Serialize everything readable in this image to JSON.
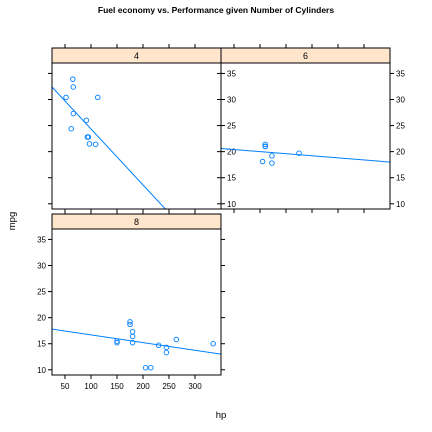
{
  "chart_data": {
    "type": "scatter",
    "title": "Fuel economy vs. Performance given Number of Cylinders",
    "xlabel": "hp",
    "ylabel": "mpg",
    "xlim": [
      25,
      350
    ],
    "ylim": [
      9,
      37
    ],
    "x_ticks": [
      50,
      100,
      150,
      200,
      250,
      300
    ],
    "y_ticks": [
      10,
      15,
      20,
      25,
      30,
      35
    ],
    "point_color": "#0080ff",
    "line_color": "#0080ff",
    "strip_color": "#ffe5cc",
    "panels": [
      {
        "strip": "8",
        "points": [
          [
            175,
            18.7
          ],
          [
            245,
            14.3
          ],
          [
            180,
            16.4
          ],
          [
            180,
            17.3
          ],
          [
            180,
            15.2
          ],
          [
            205,
            10.4
          ],
          [
            215,
            10.4
          ],
          [
            230,
            14.7
          ],
          [
            150,
            15.5
          ],
          [
            150,
            15.2
          ],
          [
            245,
            13.3
          ],
          [
            175,
            19.2
          ],
          [
            264,
            15.8
          ],
          [
            335,
            15.0
          ]
        ],
        "fit_line": [
          [
            25,
            17.8
          ],
          [
            350,
            13.0
          ]
        ]
      },
      {
        "strip": "4",
        "points": [
          [
            93,
            22.8
          ],
          [
            62,
            24.4
          ],
          [
            95,
            22.8
          ],
          [
            66,
            32.4
          ],
          [
            52,
            30.4
          ],
          [
            65,
            33.9
          ],
          [
            97,
            21.5
          ],
          [
            66,
            27.3
          ],
          [
            91,
            26.0
          ],
          [
            113,
            30.4
          ],
          [
            109,
            21.4
          ]
        ],
        "fit_line": [
          [
            25,
            32.4
          ],
          [
            243,
            9.0
          ]
        ]
      },
      {
        "strip": "6",
        "points": [
          [
            110,
            21.0
          ],
          [
            110,
            21.0
          ],
          [
            110,
            21.4
          ],
          [
            105,
            18.1
          ],
          [
            123,
            19.2
          ],
          [
            123,
            17.8
          ],
          [
            175,
            19.7
          ]
        ],
        "fit_line": [
          [
            25,
            20.6
          ],
          [
            350,
            18.0
          ]
        ]
      }
    ]
  }
}
